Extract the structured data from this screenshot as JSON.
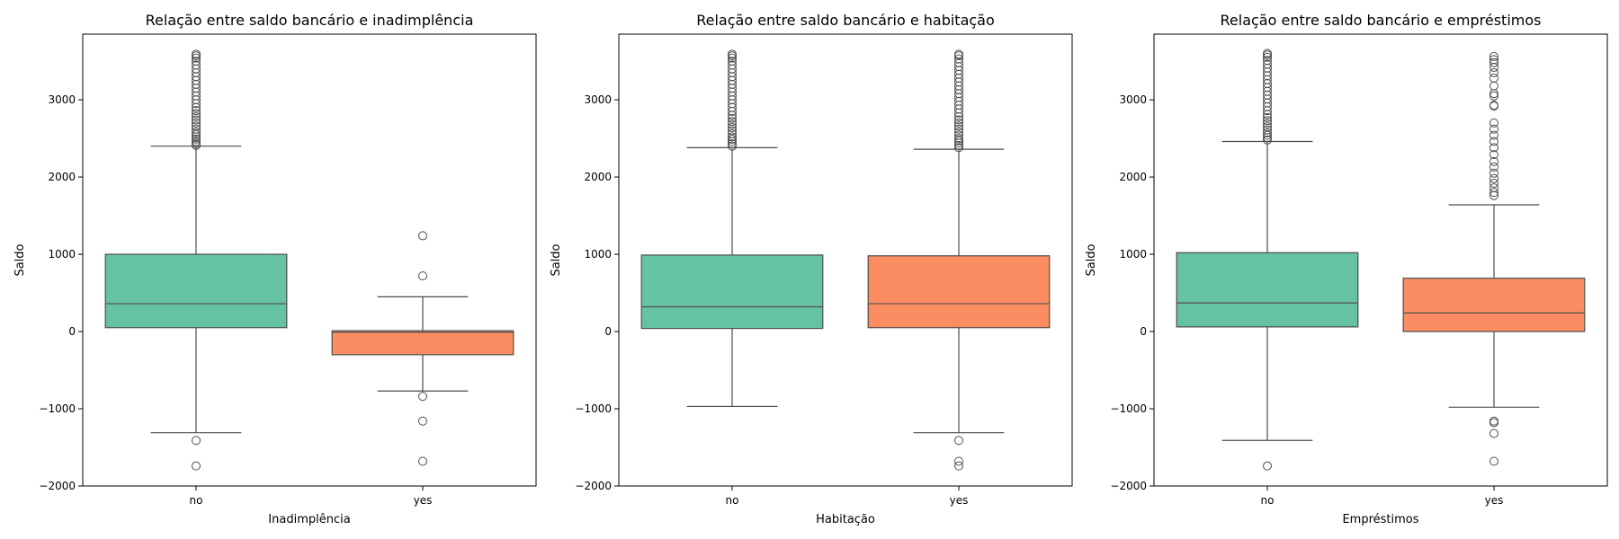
{
  "chart_data": [
    {
      "type": "box",
      "title": "Relação entre saldo bancário e inadimplência",
      "xlabel": "Inadimplência",
      "ylabel": "Saldo",
      "ylim": [
        -2000,
        3850
      ],
      "yticks": [
        -2000,
        -1000,
        0,
        1000,
        2000,
        3000
      ],
      "categories": [
        "no",
        "yes"
      ],
      "colors": [
        "#66c2a5",
        "#fc8d62"
      ],
      "boxes": [
        {
          "category": "no",
          "q1": 50,
          "median": 360,
          "q3": 1000,
          "whisker_low": -1310,
          "whisker_high": 2400,
          "outliers": [
            -1410,
            -1740,
            2410,
            2430,
            2460,
            2490,
            2520,
            2550,
            2580,
            2620,
            2660,
            2700,
            2740,
            2780,
            2820,
            2860,
            2900,
            2950,
            3000,
            3050,
            3100,
            3150,
            3200,
            3250,
            3300,
            3350,
            3400,
            3450,
            3500,
            3540,
            3570,
            3590
          ]
        },
        {
          "category": "yes",
          "q1": -300,
          "median": -10,
          "q3": 10,
          "whisker_low": -770,
          "whisker_high": 450,
          "outliers": [
            1240,
            720,
            -840,
            -1160,
            -1680
          ]
        }
      ]
    },
    {
      "type": "box",
      "title": "Relação entre saldo bancário e habitação",
      "xlabel": "Habitação",
      "ylabel": "Saldo",
      "ylim": [
        -2000,
        3850
      ],
      "yticks": [
        -2000,
        -1000,
        0,
        1000,
        2000,
        3000
      ],
      "categories": [
        "no",
        "yes"
      ],
      "colors": [
        "#66c2a5",
        "#fc8d62"
      ],
      "boxes": [
        {
          "category": "no",
          "q1": 40,
          "median": 320,
          "q3": 990,
          "whisker_low": -970,
          "whisker_high": 2380,
          "outliers": [
            2400,
            2430,
            2460,
            2490,
            2520,
            2560,
            2600,
            2640,
            2680,
            2720,
            2760,
            2800,
            2850,
            2900,
            2950,
            3000,
            3050,
            3100,
            3150,
            3200,
            3250,
            3300,
            3350,
            3400,
            3450,
            3500,
            3540,
            3570,
            3590
          ]
        },
        {
          "category": "yes",
          "q1": 50,
          "median": 360,
          "q3": 980,
          "whisker_low": -1310,
          "whisker_high": 2360,
          "outliers": [
            -1410,
            -1680,
            -1740,
            2380,
            2410,
            2440,
            2470,
            2500,
            2540,
            2580,
            2620,
            2660,
            2700,
            2740,
            2780,
            2830,
            2880,
            2930,
            2980,
            3030,
            3080,
            3130,
            3180,
            3230,
            3280,
            3330,
            3380,
            3430,
            3480,
            3530,
            3570,
            3590
          ]
        }
      ]
    },
    {
      "type": "box",
      "title": "Relação entre saldo bancário e empréstimos",
      "xlabel": "Empréstimos",
      "ylabel": "Saldo",
      "ylim": [
        -2000,
        3850
      ],
      "yticks": [
        -2000,
        -1000,
        0,
        1000,
        2000,
        3000
      ],
      "categories": [
        "no",
        "yes"
      ],
      "colors": [
        "#66c2a5",
        "#fc8d62"
      ],
      "boxes": [
        {
          "category": "no",
          "q1": 60,
          "median": 370,
          "q3": 1020,
          "whisker_low": -1410,
          "whisker_high": 2460,
          "outliers": [
            -1740,
            2480,
            2510,
            2540,
            2570,
            2610,
            2650,
            2690,
            2730,
            2770,
            2810,
            2860,
            2910,
            2960,
            3010,
            3060,
            3110,
            3160,
            3210,
            3260,
            3310,
            3360,
            3410,
            3460,
            3510,
            3550,
            3580,
            3600
          ]
        },
        {
          "category": "yes",
          "q1": 0,
          "median": 240,
          "q3": 690,
          "whisker_low": -980,
          "whisker_high": 1640,
          "outliers": [
            -1160,
            -1180,
            -1320,
            -1680,
            1760,
            1800,
            1860,
            1920,
            1980,
            2050,
            2130,
            2200,
            2290,
            2380,
            2460,
            2540,
            2620,
            2700,
            2920,
            2930,
            3050,
            3080,
            3180,
            3280,
            3350,
            3420,
            3480,
            3520,
            3560
          ]
        }
      ]
    }
  ]
}
